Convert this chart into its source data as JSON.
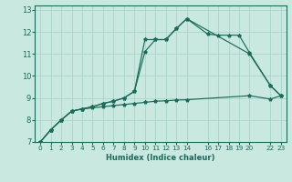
{
  "xlabel": "Humidex (Indice chaleur)",
  "bg_color": "#c8e8e0",
  "grid_color": "#aad4cc",
  "line_color": "#1a6b5a",
  "spine_color": "#1a6b5a",
  "xlim": [
    -0.5,
    23.5
  ],
  "ylim": [
    7,
    13.2
  ],
  "xticks": [
    0,
    1,
    2,
    3,
    4,
    5,
    6,
    7,
    8,
    9,
    10,
    11,
    12,
    13,
    14,
    16,
    17,
    18,
    19,
    20,
    22,
    23
  ],
  "yticks": [
    7,
    8,
    9,
    10,
    11,
    12,
    13
  ],
  "line1_x": [
    0,
    1,
    2,
    3,
    4,
    5,
    6,
    7,
    8,
    9,
    10,
    11,
    12,
    13,
    14,
    20,
    22,
    23
  ],
  "line1_y": [
    7.0,
    7.55,
    8.0,
    8.4,
    8.5,
    8.55,
    8.6,
    8.65,
    8.7,
    8.75,
    8.8,
    8.85,
    8.87,
    8.9,
    8.92,
    9.1,
    8.95,
    9.1
  ],
  "line2_x": [
    0,
    1,
    2,
    3,
    4,
    5,
    6,
    7,
    8,
    9,
    10,
    11,
    12,
    13,
    14,
    20,
    22,
    23
  ],
  "line2_y": [
    7.0,
    7.55,
    8.0,
    8.4,
    8.5,
    8.6,
    8.75,
    8.85,
    9.0,
    9.3,
    11.65,
    11.65,
    11.65,
    12.15,
    12.6,
    11.0,
    9.55,
    9.1
  ],
  "line3_x": [
    0,
    1,
    2,
    3,
    4,
    5,
    6,
    7,
    8,
    9,
    10,
    11,
    12,
    13,
    14,
    16,
    17,
    18,
    19,
    20,
    22,
    23
  ],
  "line3_y": [
    7.0,
    7.55,
    8.0,
    8.4,
    8.5,
    8.6,
    8.75,
    8.85,
    9.0,
    9.3,
    11.1,
    11.65,
    11.65,
    12.15,
    12.6,
    11.9,
    11.85,
    11.85,
    11.85,
    11.05,
    9.55,
    9.1
  ]
}
